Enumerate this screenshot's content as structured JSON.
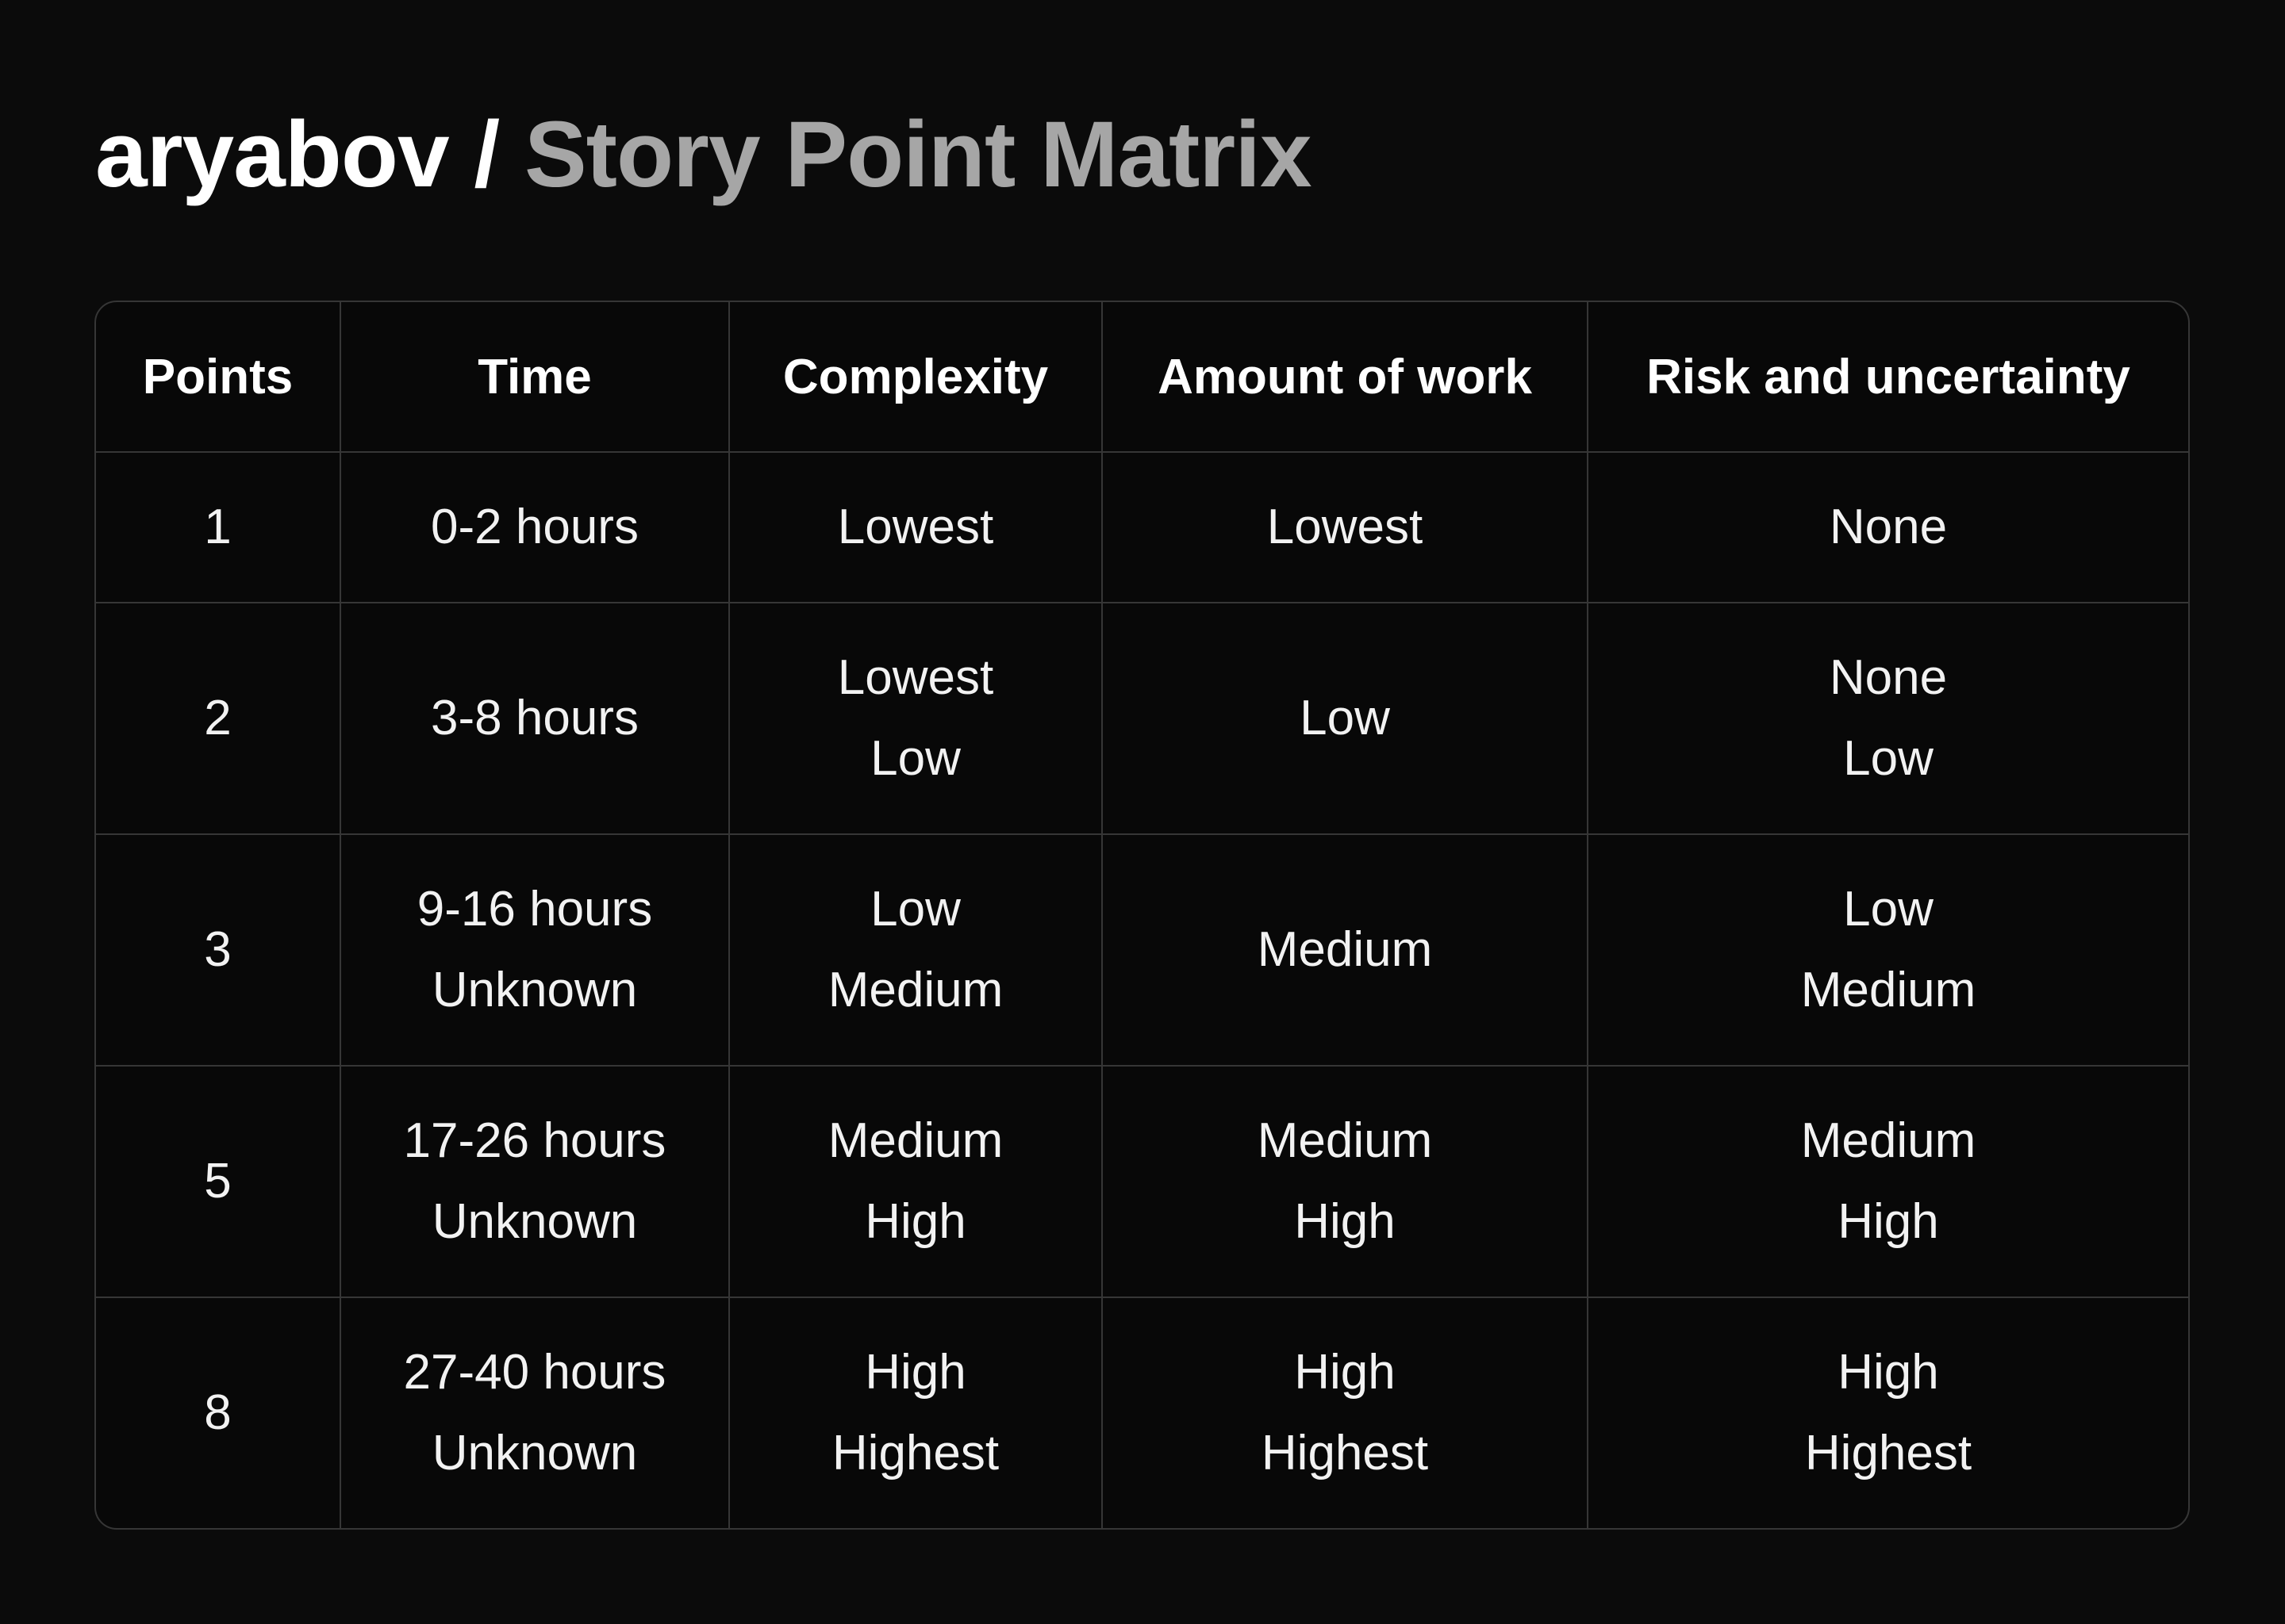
{
  "header": {
    "owner": "aryabov",
    "separator": " / ",
    "repo": "Story Point Matrix"
  },
  "matrix": {
    "columns": [
      "Points",
      "Time",
      "Complexity",
      "Amount of work",
      "Risk and uncertainty"
    ],
    "rows": [
      {
        "points": "1",
        "time": [
          "0-2 hours"
        ],
        "complexity": [
          "Lowest"
        ],
        "work": [
          "Lowest"
        ],
        "risk": [
          "None"
        ]
      },
      {
        "points": "2",
        "time": [
          "3-8 hours"
        ],
        "complexity": [
          "Lowest",
          "Low"
        ],
        "work": [
          "Low"
        ],
        "risk": [
          "None",
          "Low"
        ]
      },
      {
        "points": "3",
        "time": [
          "9-16 hours",
          "Unknown"
        ],
        "complexity": [
          "Low",
          "Medium"
        ],
        "work": [
          "Medium"
        ],
        "risk": [
          "Low",
          "Medium"
        ]
      },
      {
        "points": "5",
        "time": [
          "17-26 hours",
          "Unknown"
        ],
        "complexity": [
          "Medium",
          "High"
        ],
        "work": [
          "Medium",
          "High"
        ],
        "risk": [
          "Medium",
          "High"
        ]
      },
      {
        "points": "8",
        "time": [
          "27-40 hours",
          "Unknown"
        ],
        "complexity": [
          "High",
          "Highest"
        ],
        "work": [
          "High",
          "Highest"
        ],
        "risk": [
          "High",
          "Highest"
        ]
      }
    ]
  }
}
